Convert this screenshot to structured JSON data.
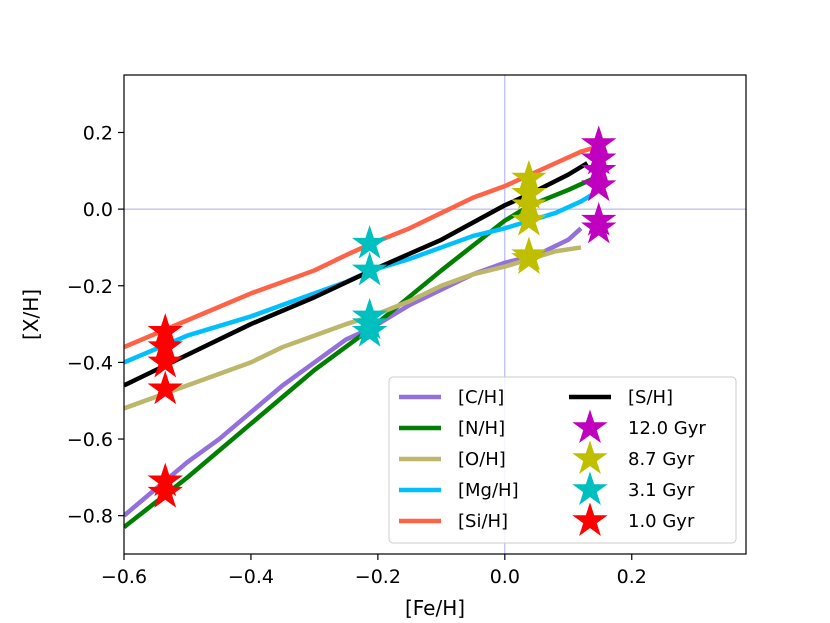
{
  "chart_data": {
    "type": "line",
    "title": "",
    "xlabel": "[Fe/H]",
    "ylabel": "[X/H]",
    "xlim": [
      -0.6,
      0.38
    ],
    "ylim": [
      -0.9,
      0.35
    ],
    "xticks": [
      -0.6,
      -0.4,
      -0.2,
      0.0,
      0.2
    ],
    "xtick_labels": [
      "−0.6",
      "−0.4",
      "−0.2",
      "0.0",
      "0.2"
    ],
    "yticks": [
      -0.8,
      -0.6,
      -0.4,
      -0.2,
      0.0,
      0.2
    ],
    "ytick_labels": [
      "−0.8",
      "−0.6",
      "−0.4",
      "−0.2",
      "0.0",
      "0.2"
    ],
    "reference_lines": {
      "x": 0.0,
      "y": 0.0,
      "color": "#aaaaee"
    },
    "legend_position": "lower-right",
    "series": [
      {
        "name": "[C/H]",
        "color": "#9370db",
        "x": [
          -0.6,
          -0.55,
          -0.5,
          -0.45,
          -0.4,
          -0.35,
          -0.3,
          -0.25,
          -0.21,
          -0.15,
          -0.1,
          -0.05,
          0.0,
          0.05,
          0.1,
          0.12
        ],
        "y": [
          -0.8,
          -0.73,
          -0.66,
          -0.6,
          -0.53,
          -0.46,
          -0.4,
          -0.34,
          -0.31,
          -0.25,
          -0.21,
          -0.17,
          -0.14,
          -0.12,
          -0.08,
          -0.05
        ]
      },
      {
        "name": "[N/H]",
        "color": "#007f00",
        "x": [
          -0.6,
          -0.5,
          -0.4,
          -0.3,
          -0.21,
          -0.1,
          0.0,
          0.04,
          0.1,
          0.14
        ],
        "y": [
          -0.83,
          -0.7,
          -0.56,
          -0.42,
          -0.31,
          -0.16,
          -0.03,
          0.01,
          0.05,
          0.08
        ]
      },
      {
        "name": "[O/H]",
        "color": "#bdb76b",
        "x": [
          -0.6,
          -0.5,
          -0.4,
          -0.35,
          -0.3,
          -0.25,
          -0.21,
          -0.15,
          -0.1,
          -0.05,
          0.0,
          0.04,
          0.08,
          0.12
        ],
        "y": [
          -0.52,
          -0.46,
          -0.4,
          -0.36,
          -0.33,
          -0.3,
          -0.28,
          -0.24,
          -0.2,
          -0.17,
          -0.15,
          -0.13,
          -0.11,
          -0.1
        ]
      },
      {
        "name": "[Mg/H]",
        "color": "#00bfff",
        "x": [
          -0.6,
          -0.5,
          -0.4,
          -0.35,
          -0.3,
          -0.25,
          -0.21,
          -0.15,
          -0.1,
          -0.05,
          0.0,
          0.04,
          0.08,
          0.12,
          0.14
        ],
        "y": [
          -0.4,
          -0.33,
          -0.28,
          -0.25,
          -0.22,
          -0.19,
          -0.16,
          -0.13,
          -0.1,
          -0.07,
          -0.05,
          -0.03,
          -0.01,
          0.02,
          0.04
        ]
      },
      {
        "name": "[Si/H]",
        "color": "#ff6347",
        "x": [
          -0.6,
          -0.5,
          -0.4,
          -0.35,
          -0.3,
          -0.25,
          -0.21,
          -0.15,
          -0.1,
          -0.05,
          0.0,
          0.04,
          0.08,
          0.12,
          0.14
        ],
        "y": [
          -0.36,
          -0.29,
          -0.22,
          -0.19,
          -0.16,
          -0.12,
          -0.09,
          -0.05,
          -0.01,
          0.03,
          0.06,
          0.09,
          0.12,
          0.15,
          0.16
        ]
      },
      {
        "name": "[S/H]",
        "color": "#000000",
        "x": [
          -0.6,
          -0.5,
          -0.4,
          -0.3,
          -0.21,
          -0.1,
          0.0,
          0.04,
          0.1,
          0.13
        ],
        "y": [
          -0.46,
          -0.38,
          -0.3,
          -0.23,
          -0.16,
          -0.08,
          0.01,
          0.04,
          0.09,
          0.12
        ]
      }
    ],
    "markers": [
      {
        "name": "12.0 Gyr",
        "color": "#bf00bf",
        "points": [
          [
            0.148,
            0.17
          ],
          [
            0.148,
            0.13
          ],
          [
            0.148,
            0.1
          ],
          [
            0.148,
            0.06
          ],
          [
            0.148,
            -0.03
          ],
          [
            0.148,
            -0.05
          ]
        ]
      },
      {
        "name": "8.7 Gyr",
        "color": "#bfbf00",
        "points": [
          [
            0.038,
            0.08
          ],
          [
            0.038,
            0.04
          ],
          [
            0.038,
            0.01
          ],
          [
            0.038,
            -0.03
          ],
          [
            0.038,
            -0.12
          ],
          [
            0.038,
            -0.13
          ]
        ]
      },
      {
        "name": "3.1 Gyr",
        "color": "#00bfbf",
        "points": [
          [
            -0.213,
            -0.09
          ],
          [
            -0.213,
            -0.16
          ],
          [
            -0.213,
            -0.28
          ],
          [
            -0.213,
            -0.3
          ],
          [
            -0.213,
            -0.32
          ]
        ]
      },
      {
        "name": "1.0 Gyr",
        "color": "#ff0000",
        "points": [
          [
            -0.535,
            -0.32
          ],
          [
            -0.535,
            -0.36
          ],
          [
            -0.535,
            -0.4
          ],
          [
            -0.535,
            -0.47
          ],
          [
            -0.535,
            -0.71
          ],
          [
            -0.535,
            -0.74
          ]
        ]
      }
    ]
  }
}
